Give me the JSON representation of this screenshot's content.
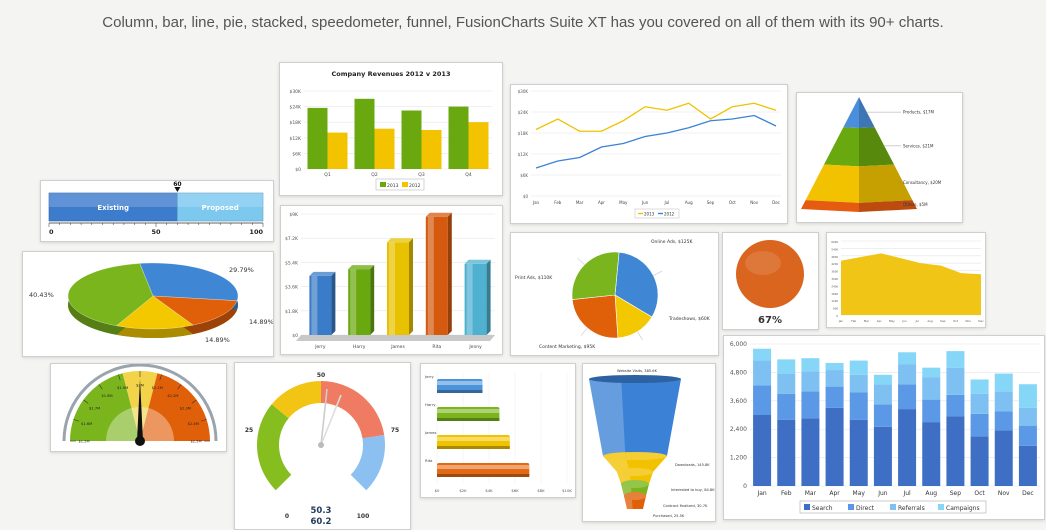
{
  "headline": "Column, bar, line, pie, stacked, speedometer, funnel, FusionCharts Suite XT has you covered on all of them with its 90+ charts.",
  "chart_data": [
    {
      "id": "revenue-column",
      "type": "bar",
      "title": "Company Revenues 2012 v 2013",
      "categories": [
        "Q1",
        "Q2",
        "Q3",
        "Q4"
      ],
      "series": [
        {
          "name": "2013",
          "values": [
            23.5,
            27,
            22.5,
            24
          ]
        },
        {
          "name": "2012",
          "values": [
            14,
            15.5,
            15,
            18
          ]
        }
      ],
      "ylim": [
        0,
        30
      ],
      "yticks": [
        "$0",
        "$6K",
        "$12K",
        "$18K",
        "$24K",
        "$30K"
      ],
      "colors": [
        "#6aa80f",
        "#f3c300"
      ]
    },
    {
      "id": "revenue-line",
      "type": "line",
      "categories": [
        "Jan",
        "Feb",
        "Mar",
        "Apr",
        "May",
        "Jun",
        "Jul",
        "Aug",
        "Sep",
        "Oct",
        "Nov",
        "Dec"
      ],
      "series": [
        {
          "name": "2013",
          "values": [
            19,
            22,
            18.5,
            18.5,
            21.5,
            25.5,
            24.5,
            26.5,
            22,
            25.5,
            26.5,
            24.5
          ]
        },
        {
          "name": "2012",
          "values": [
            8,
            10,
            11,
            14,
            15,
            17,
            18,
            19.5,
            21.5,
            22,
            23,
            20
          ]
        }
      ],
      "ylim": [
        0,
        30
      ],
      "yticks": [
        "$0",
        "$6K",
        "$12K",
        "$18K",
        "$24K",
        "$30K"
      ],
      "legend": [
        "2013",
        "2012"
      ],
      "colors": [
        "#f0c200",
        "#3b82d6"
      ]
    },
    {
      "id": "pyramid",
      "type": "pyramid",
      "labels": [
        "Products, $17M",
        "Services, $21M",
        "Consultancy, $20M",
        "Others, $5M"
      ],
      "values": [
        17,
        21,
        20,
        5
      ],
      "colors": [
        "#4b8fdc",
        "#6aa80f",
        "#f2c200",
        "#e55b10"
      ]
    },
    {
      "id": "hbullet",
      "type": "bullet",
      "value": 60,
      "value_label": "60",
      "bands": [
        {
          "label": "Existing",
          "to": 60
        },
        {
          "label": "Proposed",
          "to": 100
        }
      ],
      "ticks": [
        "0",
        "50",
        "100"
      ],
      "colors": [
        "#3d7ccd",
        "#7cc8ef"
      ]
    },
    {
      "id": "pie3d",
      "type": "pie",
      "slices": [
        {
          "label": "29.79%",
          "value": 29.79,
          "color": "#3f86d4"
        },
        {
          "label": "14.89%",
          "value": 14.89,
          "color": "#e0600a"
        },
        {
          "label": "14.89%",
          "value": 14.89,
          "color": "#f4c800"
        },
        {
          "label": "40.43%",
          "value": 40.43,
          "color": "#7ab51d"
        }
      ]
    },
    {
      "id": "column3d",
      "type": "bar",
      "categories": [
        "Jerry",
        "Harry",
        "James",
        "Rita",
        "Jenny"
      ],
      "values": [
        4.4,
        4.9,
        6.9,
        8.8,
        5.3
      ],
      "ylim": [
        0,
        9
      ],
      "yticks": [
        "$0",
        "$1.8K",
        "$3.6K",
        "$5.4K",
        "$7.2K",
        "$9K"
      ],
      "colors": [
        "#3a7cc7",
        "#6aa80f",
        "#e8c200",
        "#d55a10",
        "#4fb1cf"
      ]
    },
    {
      "id": "pie2d",
      "type": "pie",
      "slices": [
        {
          "label": "Online Ads, $125K",
          "value": 125,
          "color": "#3f86d4"
        },
        {
          "label": "Tradeshows, $60K",
          "value": 60,
          "color": "#f4c800"
        },
        {
          "label": "Content Marketing, $95K",
          "value": 95,
          "color": "#e0600a"
        },
        {
          "label": "Print Ads, $110K",
          "value": 110,
          "color": "#7ab51d"
        }
      ]
    },
    {
      "id": "bulb",
      "type": "gauge",
      "value": 67,
      "label": "67%",
      "color": "#d9651f"
    },
    {
      "id": "area",
      "type": "area",
      "values": [
        4.4,
        4.7,
        5.0,
        4.6,
        4.2,
        4.0,
        3.4,
        3.3
      ],
      "ylim": [
        0,
        6
      ],
      "yticks": [
        "0",
        "600",
        "1200",
        "1800",
        "2400",
        "3000",
        "3600",
        "4200",
        "4800",
        "5400",
        "6000"
      ],
      "xticks": [
        "Jan",
        "Feb",
        "Mar",
        "Apr",
        "May",
        "Jun",
        "Jul",
        "Aug",
        "Sep",
        "Oct",
        "Nov",
        "Dec"
      ],
      "color": "#f0c515"
    },
    {
      "id": "angular",
      "type": "gauge",
      "ticks": [
        "$1.5M",
        "$1.6M",
        "$1.7M",
        "$1.8M",
        "$1.9M",
        "$2M",
        "$2.1M",
        "$2.2M",
        "$2.3M",
        "$2.4M",
        "$2.5M"
      ],
      "needle_value": 2.0
    },
    {
      "id": "multi-gauge",
      "type": "gauge",
      "ticks": [
        "0",
        "25",
        "50",
        "75",
        "100"
      ],
      "readouts": [
        "50.3",
        "60.2"
      ]
    },
    {
      "id": "bar3d",
      "type": "bar",
      "categories": [
        "Jerry",
        "Harry",
        "James",
        "Rita"
      ],
      "values": [
        3.5,
        4.8,
        5.6,
        7.1
      ],
      "ylim": [
        0,
        10
      ],
      "xticks": [
        "$0",
        "$2K",
        "$4K",
        "$6K",
        "$8K",
        "$10K"
      ],
      "colors": [
        "#4b94db",
        "#7ab51d",
        "#f0c300",
        "#e36a15"
      ]
    },
    {
      "id": "funnel",
      "type": "funnel",
      "labels": [
        "Website Visits, 385.6K",
        "Downloads, 145.8K",
        "Interested to buy, 84.8K",
        "Contract finalized, 30.7K",
        "Purchased, 25.5K"
      ],
      "values": [
        385.6,
        145.8,
        84.8,
        30.7,
        25.5
      ],
      "colors": [
        "#3b82d6",
        "#f2c200",
        "#f2c200",
        "#7ab51d",
        "#e0600a"
      ]
    },
    {
      "id": "stacked",
      "type": "bar",
      "categories": [
        "Jan",
        "Feb",
        "Mar",
        "Apr",
        "May",
        "Jun",
        "Jul",
        "Aug",
        "Sep",
        "Oct",
        "Nov",
        "Dec"
      ],
      "series": [
        {
          "name": "Search",
          "values": [
            3000,
            2800,
            2850,
            3300,
            2800,
            2500,
            3250,
            2700,
            2950,
            2100,
            2350,
            1700
          ]
        },
        {
          "name": "Direct",
          "values": [
            1250,
            1100,
            1150,
            900,
            1150,
            950,
            1050,
            950,
            900,
            950,
            800,
            850
          ]
        },
        {
          "name": "Referrals",
          "values": [
            1050,
            850,
            850,
            700,
            750,
            850,
            850,
            950,
            1150,
            850,
            850,
            750
          ]
        },
        {
          "name": "Campaigns",
          "values": [
            500,
            600,
            550,
            300,
            600,
            400,
            500,
            400,
            700,
            600,
            750,
            1000
          ]
        }
      ],
      "ylim": [
        0,
        6000
      ],
      "yticks": [
        "0",
        "1,200",
        "2,400",
        "3,600",
        "4,800",
        "6,000"
      ],
      "legend": [
        "Search",
        "Direct",
        "Referrals",
        "Campaigns"
      ],
      "colors": [
        "#3f6fc4",
        "#5b98e6",
        "#7fc0f3",
        "#86d6f7"
      ]
    }
  ]
}
